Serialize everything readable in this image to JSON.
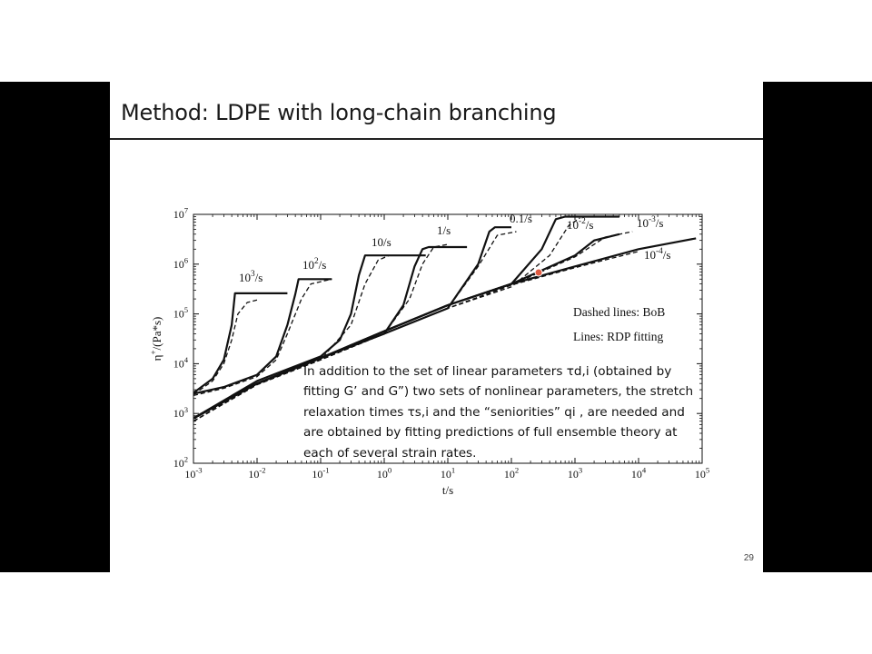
{
  "slide": {
    "title": "Method: LDPE with long-chain branching",
    "page_number": "29",
    "note": "In addition to the set of linear parameters τd,i (obtained by fitting G’ and G”) two sets of nonlinear parameters, the stretch relaxation times τs,i and the “seniorities” qi , are needed and are obtained by fitting predictions of full ensemble theory at each of several strain rates."
  },
  "chart_data": {
    "type": "line",
    "xscale": "log",
    "yscale": "log",
    "xlim": [
      0.001,
      100000
    ],
    "ylim": [
      100,
      10000000
    ],
    "xlabel": "t/s",
    "ylabel": "η+/(Pa*s)",
    "x_tick_labels": [
      "10-3",
      "10-2",
      "10-1",
      "100",
      "101",
      "102",
      "103",
      "104",
      "105"
    ],
    "y_tick_labels": [
      "102",
      "103",
      "104",
      "105",
      "106",
      "107"
    ],
    "legend_text": [
      "Dashed lines: BoB",
      "Lines: RDP fitting"
    ],
    "legend_placement": "right",
    "grid": false,
    "series": [
      {
        "name": "10^3/s",
        "label_text": "10^3/s",
        "rdp": [
          [
            0.001,
            2600
          ],
          [
            0.002,
            5000
          ],
          [
            0.003,
            12000
          ],
          [
            0.004,
            60000
          ],
          [
            0.0045,
            260000
          ],
          [
            0.03,
            260000
          ]
        ],
        "bob": [
          [
            0.001,
            2400
          ],
          [
            0.002,
            4500
          ],
          [
            0.003,
            10000
          ],
          [
            0.004,
            30000
          ],
          [
            0.005,
            100000
          ],
          [
            0.007,
            170000
          ],
          [
            0.01,
            190000
          ]
        ]
      },
      {
        "name": "10^2/s",
        "label_text": "10^2/s",
        "rdp": [
          [
            0.001,
            2500
          ],
          [
            0.003,
            3400
          ],
          [
            0.01,
            6000
          ],
          [
            0.02,
            14000
          ],
          [
            0.03,
            60000
          ],
          [
            0.04,
            250000
          ],
          [
            0.045,
            500000
          ],
          [
            0.15,
            500000
          ]
        ],
        "bob": [
          [
            0.001,
            2300
          ],
          [
            0.003,
            3200
          ],
          [
            0.01,
            5500
          ],
          [
            0.02,
            12000
          ],
          [
            0.03,
            40000
          ],
          [
            0.05,
            200000
          ],
          [
            0.07,
            400000
          ],
          [
            0.15,
            500000
          ]
        ]
      },
      {
        "name": "10/s",
        "label_text": "10/s",
        "rdp": [
          [
            0.001,
            800
          ],
          [
            0.01,
            4500
          ],
          [
            0.1,
            14000
          ],
          [
            0.2,
            30000
          ],
          [
            0.3,
            100000
          ],
          [
            0.4,
            600000
          ],
          [
            0.5,
            1500000
          ],
          [
            4.5,
            1500000
          ]
        ],
        "bob": [
          [
            0.001,
            700
          ],
          [
            0.01,
            4000
          ],
          [
            0.1,
            12000
          ],
          [
            0.3,
            60000
          ],
          [
            0.5,
            400000
          ],
          [
            0.8,
            1200000
          ],
          [
            1.2,
            1500000
          ]
        ]
      },
      {
        "name": "1/s",
        "label_text": "1/s",
        "rdp": [
          [
            0.001,
            800
          ],
          [
            0.01,
            4000
          ],
          [
            0.1,
            13000
          ],
          [
            1,
            40000
          ],
          [
            2,
            150000
          ],
          [
            3,
            900000
          ],
          [
            4,
            2000000
          ],
          [
            5,
            2200000
          ],
          [
            20,
            2200000
          ]
        ],
        "bob": [
          [
            0.001,
            700
          ],
          [
            0.01,
            3800
          ],
          [
            0.1,
            12000
          ],
          [
            1,
            40000
          ],
          [
            2.5,
            200000
          ],
          [
            4,
            1000000
          ],
          [
            6,
            2200000
          ],
          [
            10,
            2500000
          ]
        ]
      },
      {
        "name": "0.1/s",
        "label_text": "0.1/s",
        "rdp": [
          [
            0.001,
            800
          ],
          [
            0.01,
            4000
          ],
          [
            0.1,
            13000
          ],
          [
            1,
            40000
          ],
          [
            10,
            130000
          ],
          [
            30,
            1000000
          ],
          [
            45,
            4500000
          ],
          [
            55,
            5500000
          ],
          [
            100,
            5500000
          ]
        ],
        "bob": [
          [
            0.001,
            700
          ],
          [
            0.01,
            3800
          ],
          [
            0.1,
            12000
          ],
          [
            1,
            40000
          ],
          [
            10,
            130000
          ],
          [
            30,
            900000
          ],
          [
            60,
            3800000
          ],
          [
            120,
            4500000
          ]
        ]
      },
      {
        "name": "10^-2/s",
        "label_text": "10^-2/s",
        "rdp": [
          [
            0.001,
            800
          ],
          [
            0.01,
            4000
          ],
          [
            0.1,
            13000
          ],
          [
            1,
            45000
          ],
          [
            10,
            150000
          ],
          [
            100,
            400000
          ],
          [
            300,
            2000000
          ],
          [
            500,
            8000000
          ],
          [
            700,
            9000000
          ],
          [
            5000,
            9000000
          ]
        ],
        "bob": [
          [
            0.001,
            700
          ],
          [
            0.01,
            3800
          ],
          [
            0.1,
            12000
          ],
          [
            1,
            40000
          ],
          [
            10,
            130000
          ],
          [
            100,
            350000
          ],
          [
            400,
            1500000
          ],
          [
            800,
            6000000
          ],
          [
            1200,
            8500000
          ]
        ]
      },
      {
        "name": "10^-3/s",
        "label_text": "10^-3/s",
        "rdp": [
          [
            0.001,
            800
          ],
          [
            0.01,
            4000
          ],
          [
            0.1,
            13000
          ],
          [
            1,
            45000
          ],
          [
            10,
            150000
          ],
          [
            100,
            400000
          ],
          [
            1000,
            1500000
          ],
          [
            2000,
            3000000
          ],
          [
            5000,
            4000000
          ]
        ],
        "bob": [
          [
            0.001,
            700
          ],
          [
            0.01,
            3800
          ],
          [
            0.1,
            12000
          ],
          [
            1,
            40000
          ],
          [
            10,
            130000
          ],
          [
            100,
            380000
          ],
          [
            1000,
            1400000
          ],
          [
            3000,
            3500000
          ],
          [
            8000,
            4500000
          ]
        ]
      },
      {
        "name": "10^-4/s",
        "label_text": "10^-4/s",
        "rdp": [
          [
            0.001,
            800
          ],
          [
            0.01,
            4000
          ],
          [
            0.1,
            13000
          ],
          [
            1,
            45000
          ],
          [
            10,
            150000
          ],
          [
            100,
            400000
          ],
          [
            1000,
            900000
          ],
          [
            10000,
            2000000
          ],
          [
            80000,
            3300000
          ]
        ],
        "bob": [
          [
            0.001,
            700
          ],
          [
            0.01,
            3800
          ],
          [
            0.1,
            12000
          ],
          [
            1,
            40000
          ],
          [
            10,
            130000
          ],
          [
            100,
            380000
          ],
          [
            1000,
            850000
          ],
          [
            10000,
            1800000
          ]
        ]
      }
    ]
  }
}
